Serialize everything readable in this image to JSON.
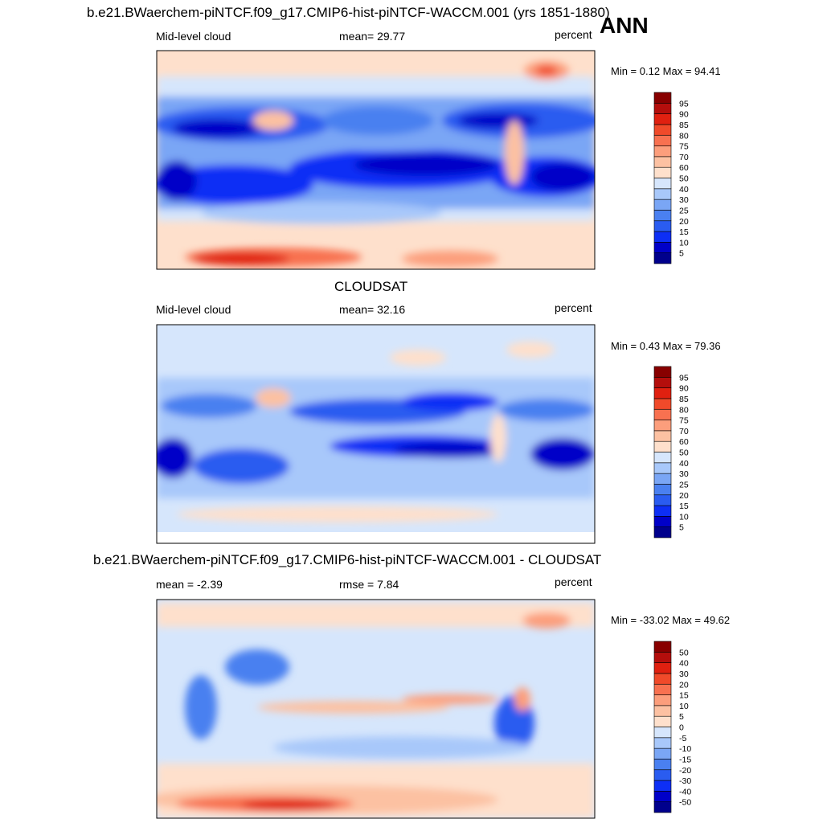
{
  "season": "ANN",
  "colorbar_colors": {
    "abs": [
      "#00008c",
      "#0000c8",
      "#0d2ff5",
      "#2a5cf0",
      "#4a80f0",
      "#7aa6f5",
      "#a8c8fa",
      "#d6e6fc",
      "#ffffff",
      "#fee0cc",
      "#fcc1a2",
      "#fc9e7c",
      "#f87150",
      "#f04a2a",
      "#e02010",
      "#b40e0c",
      "#880000"
    ],
    "diff": [
      "#00008c",
      "#0000c8",
      "#0d2ff5",
      "#2a5cf0",
      "#4a80f0",
      "#7aa6f5",
      "#a8c8fa",
      "#d6e6fc",
      "#ffffff",
      "#fee0cc",
      "#fcc1a2",
      "#fc9e7c",
      "#f87150",
      "#f04a2a",
      "#e02010",
      "#b40e0c",
      "#880000"
    ]
  },
  "panels": [
    {
      "title": "b.e21.BWaerchem-piNTCF.f09_g17.CMIP6-hist-piNTCF-WACCM.001 (yrs 1851-1880)",
      "left_label": "Mid-level cloud",
      "center_label": "mean=  29.77",
      "right_label": "percent",
      "minmax": "Min =   0.12 Max =  94.41",
      "levels": [
        "5",
        "10",
        "15",
        "20",
        "25",
        "30",
        "40",
        "50",
        "60",
        "70",
        "75",
        "80",
        "85",
        "90",
        "95"
      ]
    },
    {
      "title": "CLOUDSAT",
      "left_label": "Mid-level cloud",
      "center_label": "mean=  32.16",
      "right_label": "percent",
      "minmax": "Min =   0.43 Max =  79.36",
      "levels": [
        "5",
        "10",
        "15",
        "20",
        "25",
        "30",
        "40",
        "50",
        "60",
        "70",
        "75",
        "80",
        "85",
        "90",
        "95"
      ]
    },
    {
      "title": "b.e21.BWaerchem-piNTCF.f09_g17.CMIP6-hist-piNTCF-WACCM.001 - CLOUDSAT",
      "left_label": "mean =  -2.39",
      "center_label": "rmse =   7.84",
      "right_label": "percent",
      "minmax": "Min = -33.02 Max =  49.62",
      "levels": [
        "-50",
        "-40",
        "-30",
        "-20",
        "-15",
        "-10",
        "-5",
        "0",
        "5",
        "10",
        "15",
        "20",
        "30",
        "40",
        "50"
      ]
    }
  ]
}
